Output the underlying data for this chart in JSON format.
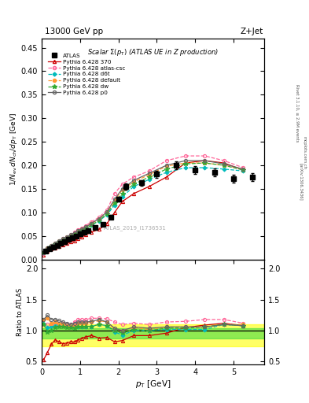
{
  "title_top": "13000 GeV pp",
  "title_right": "Z+Jet",
  "plot_title": "Scalar $\\Sigma(p_\\mathrm{T})$ (ATLAS UE in Z production)",
  "ylabel_main": "$1/N_\\mathrm{ev}\\, dN_\\mathrm{ch}/dp_\\mathrm{T}$ [GeV]",
  "ylabel_ratio": "Ratio to ATLAS",
  "xlabel": "$p_\\mathrm{T}$ [GeV]",
  "watermark": "ATLAS_2019_I1736531",
  "right_label1": "Rivet 3.1.10, ≥ 2.9M events",
  "right_label2": "[arXiv:1306.3436]",
  "right_label3": "mcplots.cern.ch",
  "pt_atlas": [
    0.1,
    0.2,
    0.3,
    0.4,
    0.5,
    0.6,
    0.7,
    0.8,
    0.9,
    1.0,
    1.1,
    1.2,
    1.4,
    1.6,
    1.8,
    2.0,
    2.2,
    2.6,
    3.0,
    3.5,
    4.0,
    4.5,
    5.0,
    5.5
  ],
  "atlas_vals": [
    0.018,
    0.022,
    0.026,
    0.03,
    0.034,
    0.038,
    0.042,
    0.046,
    0.05,
    0.055,
    0.058,
    0.062,
    0.068,
    0.075,
    0.09,
    0.128,
    0.155,
    0.163,
    0.181,
    0.2,
    0.19,
    0.185,
    0.172,
    0.175
  ],
  "atlas_err": [
    0.002,
    0.002,
    0.002,
    0.002,
    0.002,
    0.002,
    0.002,
    0.002,
    0.002,
    0.002,
    0.002,
    0.002,
    0.003,
    0.003,
    0.004,
    0.005,
    0.006,
    0.006,
    0.007,
    0.008,
    0.008,
    0.008,
    0.008,
    0.008
  ],
  "pt_mc": [
    0.05,
    0.15,
    0.25,
    0.35,
    0.45,
    0.55,
    0.65,
    0.75,
    0.85,
    0.95,
    1.05,
    1.15,
    1.3,
    1.5,
    1.7,
    1.9,
    2.1,
    2.4,
    2.8,
    3.25,
    3.75,
    4.25,
    4.75,
    5.25
  ],
  "py370_vals": [
    0.01,
    0.018,
    0.022,
    0.025,
    0.028,
    0.031,
    0.034,
    0.037,
    0.04,
    0.044,
    0.048,
    0.052,
    0.058,
    0.064,
    0.076,
    0.1,
    0.123,
    0.14,
    0.155,
    0.175,
    0.205,
    0.21,
    0.205,
    0.19
  ],
  "py370_color": "#cc0000",
  "py370_label": "Pythia 6.428 370",
  "pyatlas_vals": [
    0.013,
    0.022,
    0.028,
    0.033,
    0.038,
    0.044,
    0.048,
    0.052,
    0.058,
    0.063,
    0.067,
    0.072,
    0.08,
    0.09,
    0.105,
    0.14,
    0.16,
    0.175,
    0.188,
    0.21,
    0.22,
    0.22,
    0.21,
    0.195
  ],
  "pyatlas_color": "#ff6699",
  "pyatlas_label": "Pythia 6.428 atlas-csc",
  "pyd6t_vals": [
    0.014,
    0.022,
    0.028,
    0.033,
    0.038,
    0.042,
    0.046,
    0.05,
    0.054,
    0.058,
    0.062,
    0.066,
    0.073,
    0.082,
    0.095,
    0.115,
    0.133,
    0.155,
    0.17,
    0.185,
    0.195,
    0.195,
    0.192,
    0.188
  ],
  "pyd6t_color": "#00bbbb",
  "pyd6t_label": "Pythia 6.428 d6t",
  "pydefault_vals": [
    0.015,
    0.024,
    0.029,
    0.034,
    0.039,
    0.043,
    0.047,
    0.051,
    0.055,
    0.06,
    0.064,
    0.068,
    0.076,
    0.086,
    0.1,
    0.125,
    0.148,
    0.165,
    0.18,
    0.198,
    0.205,
    0.205,
    0.2,
    0.192
  ],
  "pydefault_color": "#ff9933",
  "pydefault_label": "Pythia 6.428 default",
  "pydw_vals": [
    0.014,
    0.021,
    0.027,
    0.032,
    0.037,
    0.041,
    0.045,
    0.049,
    0.053,
    0.058,
    0.062,
    0.066,
    0.073,
    0.083,
    0.097,
    0.12,
    0.14,
    0.16,
    0.175,
    0.192,
    0.203,
    0.205,
    0.2,
    0.19
  ],
  "pydw_color": "#33aa33",
  "pydw_label": "Pythia 6.428 dw",
  "pyp0_vals": [
    0.015,
    0.024,
    0.03,
    0.035,
    0.04,
    0.044,
    0.048,
    0.052,
    0.057,
    0.061,
    0.065,
    0.069,
    0.077,
    0.087,
    0.101,
    0.128,
    0.15,
    0.168,
    0.183,
    0.2,
    0.21,
    0.21,
    0.203,
    0.192
  ],
  "pyp0_color": "#666666",
  "pyp0_label": "Pythia 6.428 p0",
  "ylim_main": [
    0.0,
    0.47
  ],
  "ylim_ratio": [
    0.45,
    2.15
  ],
  "xlim": [
    0.0,
    5.8
  ],
  "yticks_main": [
    0.0,
    0.05,
    0.1,
    0.15,
    0.2,
    0.25,
    0.3,
    0.35,
    0.4,
    0.45
  ],
  "yticks_ratio": [
    0.5,
    1.0,
    1.5,
    2.0
  ],
  "band_yellow_lo": 0.75,
  "band_yellow_hi": 1.1,
  "band_green_lo": 0.88,
  "band_green_hi": 1.04,
  "ratio_py370": [
    0.53,
    0.65,
    0.78,
    0.85,
    0.82,
    0.79,
    0.8,
    0.82,
    0.82,
    0.85,
    0.88,
    0.9,
    0.92,
    0.88,
    0.89,
    0.82,
    0.84,
    0.92,
    0.92,
    0.96,
    1.05,
    1.09,
    1.12,
    1.08
  ],
  "ratio_pyatlas": [
    1.1,
    1.1,
    1.1,
    1.12,
    1.1,
    1.12,
    1.1,
    1.1,
    1.14,
    1.18,
    1.18,
    1.18,
    1.2,
    1.2,
    1.19,
    1.14,
    1.1,
    1.12,
    1.1,
    1.14,
    1.15,
    1.18,
    1.18,
    1.12
  ],
  "ratio_pyd6t": [
    1.12,
    1.05,
    1.06,
    1.08,
    1.1,
    1.1,
    1.08,
    1.06,
    1.06,
    1.06,
    1.06,
    1.07,
    1.07,
    1.1,
    1.08,
    0.98,
    0.93,
    1.0,
    1.0,
    1.02,
    1.02,
    1.02,
    1.1,
    1.08
  ],
  "ratio_pydefault": [
    1.18,
    1.2,
    1.12,
    1.14,
    1.12,
    1.1,
    1.08,
    1.06,
    1.08,
    1.12,
    1.12,
    1.12,
    1.14,
    1.16,
    1.14,
    1.02,
    1.0,
    1.05,
    1.02,
    1.06,
    1.06,
    1.06,
    1.1,
    1.1
  ],
  "ratio_pydw": [
    1.1,
    0.98,
    1.0,
    1.05,
    1.06,
    1.06,
    1.05,
    1.05,
    1.04,
    1.06,
    1.06,
    1.07,
    1.07,
    1.1,
    1.08,
    1.0,
    0.96,
    1.02,
    1.0,
    1.04,
    1.04,
    1.06,
    1.1,
    1.08
  ],
  "ratio_pyp0": [
    1.18,
    1.25,
    1.18,
    1.18,
    1.16,
    1.14,
    1.12,
    1.1,
    1.12,
    1.14,
    1.14,
    1.14,
    1.15,
    1.18,
    1.14,
    1.04,
    1.0,
    1.06,
    1.04,
    1.06,
    1.06,
    1.06,
    1.1,
    1.08
  ]
}
